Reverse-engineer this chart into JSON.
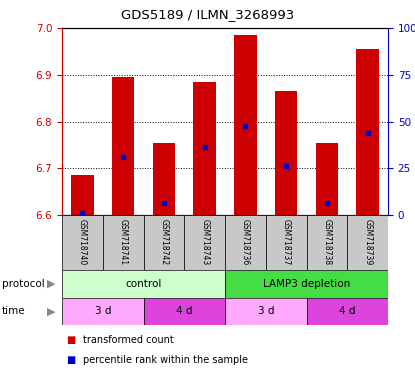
{
  "title": "GDS5189 / ILMN_3268993",
  "samples": [
    "GSM718740",
    "GSM718741",
    "GSM718742",
    "GSM718743",
    "GSM718736",
    "GSM718737",
    "GSM718738",
    "GSM718739"
  ],
  "bar_bottoms": [
    6.6,
    6.6,
    6.6,
    6.6,
    6.6,
    6.6,
    6.6,
    6.6
  ],
  "bar_tops": [
    6.685,
    6.895,
    6.755,
    6.885,
    6.985,
    6.865,
    6.755,
    6.955
  ],
  "blue_marker_y": [
    6.605,
    6.725,
    6.625,
    6.745,
    6.79,
    6.705,
    6.625,
    6.775
  ],
  "ylim": [
    6.6,
    7.0
  ],
  "yticks_left": [
    6.6,
    6.7,
    6.8,
    6.9,
    7.0
  ],
  "yticks_right": [
    0,
    25,
    50,
    75,
    100
  ],
  "bar_color": "#cc0000",
  "blue_color": "#0000cc",
  "protocol_groups": [
    {
      "label": "control",
      "start": 0,
      "end": 4,
      "color": "#ccffcc"
    },
    {
      "label": "LAMP3 depletion",
      "start": 4,
      "end": 8,
      "color": "#44dd44"
    }
  ],
  "time_groups": [
    {
      "label": "3 d",
      "start": 0,
      "end": 2,
      "color": "#ffaaff"
    },
    {
      "label": "4 d",
      "start": 2,
      "end": 4,
      "color": "#dd44dd"
    },
    {
      "label": "3 d",
      "start": 4,
      "end": 6,
      "color": "#ffaaff"
    },
    {
      "label": "4 d",
      "start": 6,
      "end": 8,
      "color": "#dd44dd"
    }
  ],
  "legend_items": [
    {
      "label": "transformed count",
      "color": "#cc0000"
    },
    {
      "label": "percentile rank within the sample",
      "color": "#0000cc"
    }
  ],
  "label_color_left": "#cc0000",
  "label_color_right": "#0000cc",
  "sample_bg": "#c8c8c8",
  "fig_width": 4.15,
  "fig_height": 3.84,
  "dpi": 100
}
